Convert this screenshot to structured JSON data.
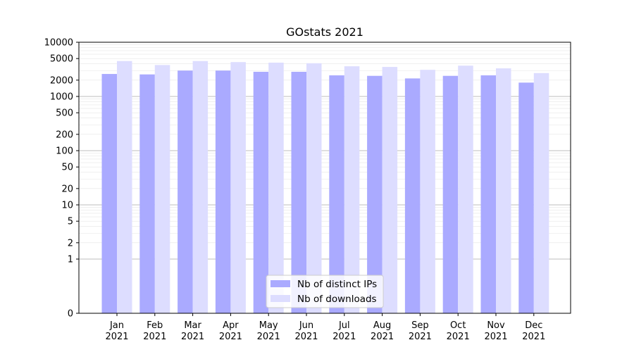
{
  "chart_data": {
    "type": "bar",
    "title": "GOstats 2021",
    "xlabel": "",
    "ylabel": "",
    "yscale": "symlog",
    "ylim": [
      0,
      10000
    ],
    "yticks": [
      0,
      1,
      2,
      5,
      10,
      20,
      50,
      100,
      200,
      500,
      1000,
      2000,
      5000,
      10000
    ],
    "grid": true,
    "legend_position": "bottom-center",
    "categories": [
      [
        "Jan",
        "2021"
      ],
      [
        "Feb",
        "2021"
      ],
      [
        "Mar",
        "2021"
      ],
      [
        "Apr",
        "2021"
      ],
      [
        "May",
        "2021"
      ],
      [
        "Jun",
        "2021"
      ],
      [
        "Jul",
        "2021"
      ],
      [
        "Aug",
        "2021"
      ],
      [
        "Sep",
        "2021"
      ],
      [
        "Oct",
        "2021"
      ],
      [
        "Nov",
        "2021"
      ],
      [
        "Dec",
        "2021"
      ]
    ],
    "series": [
      {
        "name": "Nb of distinct IPs",
        "color": "#aaaaff",
        "values": [
          2600,
          2550,
          3000,
          3000,
          2850,
          2850,
          2450,
          2400,
          2150,
          2400,
          2450,
          1800
        ]
      },
      {
        "name": "Nb of downloads",
        "color": "#ddddff",
        "values": [
          4500,
          3800,
          4500,
          4300,
          4200,
          4100,
          3600,
          3500,
          3100,
          3700,
          3300,
          2700
        ]
      }
    ]
  }
}
